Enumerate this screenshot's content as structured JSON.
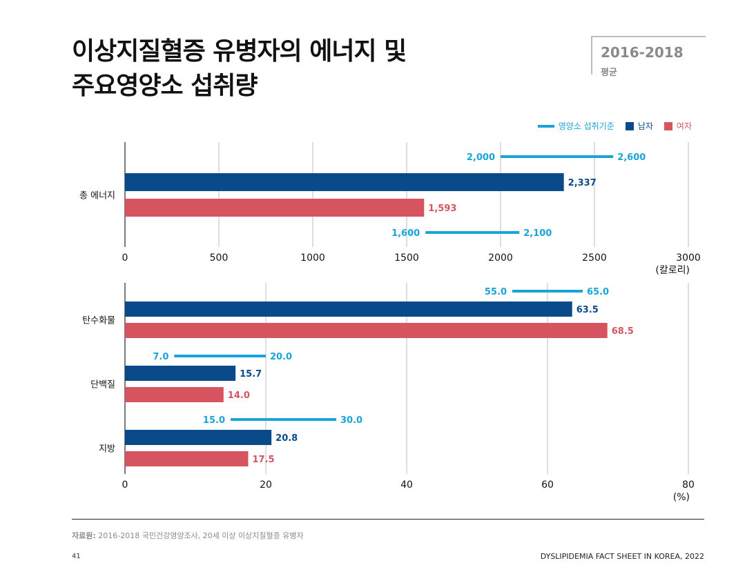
{
  "header": {
    "title_line1": "이상지질혈증 유병자의 에너지 및",
    "title_line2": "주요영양소 섭취량",
    "period_years": "2016-2018",
    "period_label": "평균"
  },
  "legend": {
    "reference": "영양소 섭취기준",
    "male": "남자",
    "female": "여자"
  },
  "colors": {
    "reference": "#1aa3d9",
    "male": "#0b4a8a",
    "female": "#d6545f",
    "grid": "#bdbdbd"
  },
  "chart_data": [
    {
      "type": "bar",
      "orientation": "horizontal",
      "categories": [
        "총 에너지"
      ],
      "series": [
        {
          "name": "남자",
          "values": [
            2337
          ]
        },
        {
          "name": "여자",
          "values": [
            1593
          ]
        }
      ],
      "reference_ranges": [
        {
          "name": "영양소 섭취기준",
          "group": "남자",
          "ranges": [
            [
              2000,
              2600
            ]
          ]
        },
        {
          "name": "영양소 섭취기준",
          "group": "여자",
          "ranges": [
            [
              1600,
              2100
            ]
          ]
        }
      ],
      "value_labels": {
        "male": [
          "2,337"
        ],
        "female": [
          "1,593"
        ],
        "ref_male": [
          [
            "2,000",
            "2,600"
          ]
        ],
        "ref_female": [
          [
            "1,600",
            "2,100"
          ]
        ]
      },
      "xlim": [
        0,
        3000
      ],
      "xticks": [
        "0",
        "500",
        "1000",
        "1500",
        "2000",
        "2500",
        "3000"
      ],
      "xticks_values": [
        0,
        500,
        1000,
        1500,
        2000,
        2500,
        3000
      ],
      "xunit": "(칼로리)",
      "grid": true
    },
    {
      "type": "bar",
      "orientation": "horizontal",
      "categories": [
        "탄수화물",
        "단백질",
        "지방"
      ],
      "series": [
        {
          "name": "남자",
          "values": [
            63.5,
            15.7,
            20.8
          ]
        },
        {
          "name": "여자",
          "values": [
            68.5,
            14.0,
            17.5
          ]
        }
      ],
      "reference_ranges": [
        {
          "name": "영양소 섭취기준",
          "ranges": [
            [
              55.0,
              65.0
            ],
            [
              7.0,
              20.0
            ],
            [
              15.0,
              30.0
            ]
          ]
        }
      ],
      "value_labels": {
        "male": [
          "63.5",
          "15.7",
          "20.8"
        ],
        "female": [
          "68.5",
          "14.0",
          "17.5"
        ],
        "ref": [
          [
            "55.0",
            "65.0"
          ],
          [
            "7.0",
            "20.0"
          ],
          [
            "15.0",
            "30.0"
          ]
        ]
      },
      "xlim": [
        0,
        80
      ],
      "xticks": [
        "0",
        "20",
        "40",
        "60",
        "80"
      ],
      "xticks_values": [
        0,
        20,
        40,
        60,
        80
      ],
      "xunit": "(%)",
      "grid": true
    }
  ],
  "footer": {
    "source_label": "자료원:",
    "source_text": "2016-2018 국민건강영양조사, 20세 이상 이상지질혈증 유병자",
    "page_number": "41",
    "running_title": "DYSLIPIDEMIA FACT SHEET IN KOREA, 2022"
  }
}
